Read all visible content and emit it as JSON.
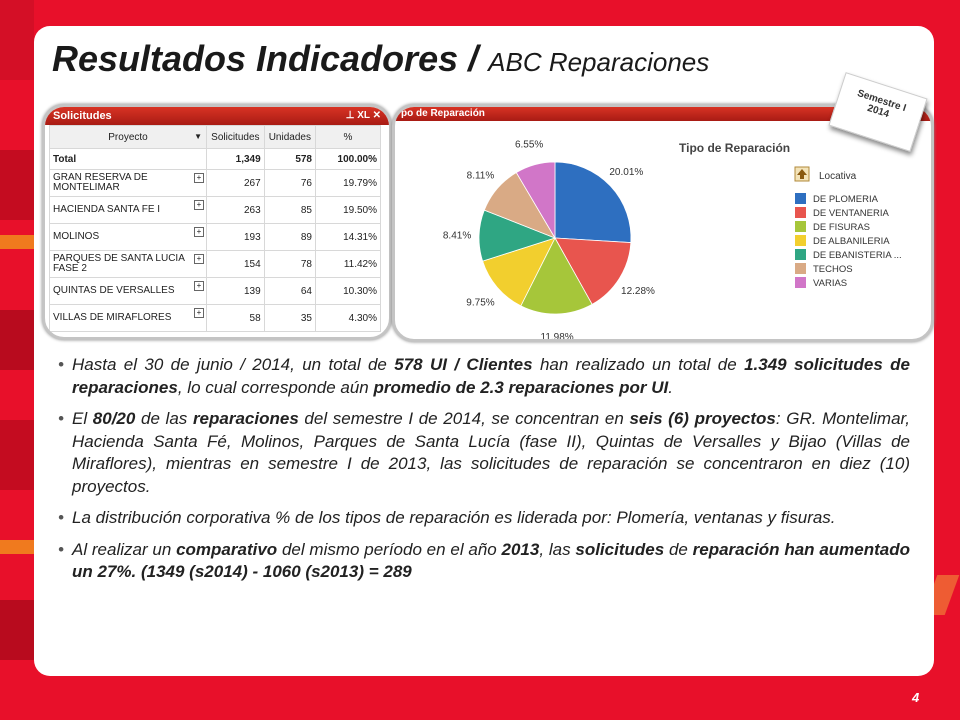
{
  "title": {
    "main": "Resultados Indicadores /",
    "sub": "ABC Reparaciones"
  },
  "badge": {
    "line1": "Semestre I",
    "line2": "2014"
  },
  "solicitudes_panel": {
    "header": "Solicitudes",
    "header_icons": "⊥ XL ✕",
    "columns": [
      "Proyecto",
      "Solicitudes",
      "Unidades",
      "%"
    ],
    "sort_arrow": "▼",
    "rows": [
      {
        "proyecto": "Total",
        "solicitudes": "1,349",
        "unidades": "578",
        "pct": "100.00%"
      },
      {
        "proyecto": "GRAN RESERVA DE MONTELIMAR",
        "solicitudes": "267",
        "unidades": "76",
        "pct": "19.79%"
      },
      {
        "proyecto": "HACIENDA SANTA FE I",
        "solicitudes": "263",
        "unidades": "85",
        "pct": "19.50%"
      },
      {
        "proyecto": "MOLINOS",
        "solicitudes": "193",
        "unidades": "89",
        "pct": "14.31%"
      },
      {
        "proyecto": "PARQUES DE SANTA LUCIA FASE 2",
        "solicitudes": "154",
        "unidades": "78",
        "pct": "11.42%"
      },
      {
        "proyecto": "QUINTAS DE VERSALLES",
        "solicitudes": "139",
        "unidades": "64",
        "pct": "10.30%"
      },
      {
        "proyecto": "VILLAS DE MIRAFLORES",
        "solicitudes": "58",
        "unidades": "35",
        "pct": "4.30%"
      }
    ]
  },
  "tipo_panel": {
    "header": "po de Reparación",
    "legend_header": "Locativa"
  },
  "chart_data": {
    "type": "pie",
    "title": "Tipo de Reparación",
    "categories": [
      "DE PLOMERIA",
      "DE VENTANERIA",
      "DE FISURAS",
      "DE ALBANILERIA",
      "DE EBANISTERIA ...",
      "TECHOS",
      "VARIAS"
    ],
    "values": [
      20.01,
      12.28,
      11.98,
      9.75,
      8.41,
      8.11,
      6.55
    ],
    "labels": [
      "20.01%",
      "12.28%",
      "11.98%",
      "9.75%",
      "8.41%",
      "8.11%",
      "6.55%"
    ],
    "colors": [
      "#2e6fc0",
      "#e8554e",
      "#a6c63a",
      "#f2cf2e",
      "#2fa683",
      "#d9aa85",
      "#d176c8"
    ],
    "legend_position": "right"
  },
  "bullets": [
    [
      {
        "t": "Hasta el 30 de junio / 2014, un total de ",
        "b": false
      },
      {
        "t": "578 UI / Clientes",
        "b": true
      },
      {
        "t": " han realizado un total de ",
        "b": false
      },
      {
        "t": "1.349 solicitudes de reparaciones",
        "b": true
      },
      {
        "t": ", lo cual corresponde aún ",
        "b": false
      },
      {
        "t": "promedio de 2.3 reparaciones por UI",
        "b": true
      },
      {
        "t": ".",
        "b": false
      }
    ],
    [
      {
        "t": "El ",
        "b": false
      },
      {
        "t": "80/20",
        "b": true
      },
      {
        "t": " de las ",
        "b": false
      },
      {
        "t": "reparaciones",
        "b": true
      },
      {
        "t": " del semestre I de 2014, se concentran en ",
        "b": false
      },
      {
        "t": "seis (6) proyectos",
        "b": true
      },
      {
        "t": ": GR. Montelimar, Hacienda Santa Fé, Molinos, Parques de Santa Lucía (fase II), Quintas de Versalles y Bijao (Villas de Miraflores), mientras en semestre I de 2013, las solicitudes de reparación se concentraron en diez (10) proyectos.",
        "b": false
      }
    ],
    [
      {
        "t": "La distribución corporativa ",
        "b": false
      },
      {
        "t": "%",
        "b": false
      },
      {
        "t": " de los tipos de reparación es liderada por: Plomería, ventanas y fisuras.",
        "b": false
      }
    ],
    [
      {
        "t": "Al realizar un ",
        "b": false
      },
      {
        "t": "comparativo",
        "b": true
      },
      {
        "t": " del mismo período en el año ",
        "b": false
      },
      {
        "t": "2013",
        "b": true
      },
      {
        "t": ", las ",
        "b": false
      },
      {
        "t": "solicitudes",
        "b": true
      },
      {
        "t": " de ",
        "b": false
      },
      {
        "t": "reparación han aumentado un 27%. (1349 (s2014) -  1060 (s2013) = 289",
        "b": true
      }
    ]
  ],
  "page_number": "4"
}
